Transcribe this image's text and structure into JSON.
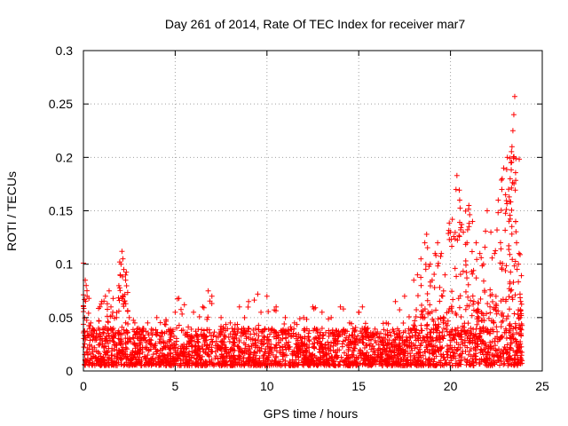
{
  "chart_data": {
    "type": "scatter",
    "title": "Day 261 of 2014, Rate Of TEC Index for receiver mar7",
    "xlabel": "GPS time / hours",
    "ylabel": "ROTI / TECUs",
    "xlim": [
      0,
      25
    ],
    "ylim": [
      0,
      0.3
    ],
    "xticks": [
      0,
      5,
      10,
      15,
      20,
      25
    ],
    "xtick_labels": [
      "0",
      "5",
      "10",
      "15",
      "20",
      "25"
    ],
    "yticks": [
      0,
      0.05,
      0.1,
      0.15,
      0.2,
      0.25,
      0.3
    ],
    "ytick_labels": [
      "0",
      "0.05",
      "0.1",
      "0.15",
      "0.2",
      "0.25",
      "0.3"
    ],
    "grid": true,
    "marker": "+",
    "color": "#ff0000",
    "series": [
      {
        "name": "ROTI",
        "points": [
          [
            0.0,
            0.101
          ],
          [
            0.1,
            0.085
          ],
          [
            0.15,
            0.08
          ],
          [
            0.2,
            0.07
          ],
          [
            0.3,
            0.068
          ],
          [
            0.4,
            0.045
          ],
          [
            0.5,
            0.04
          ],
          [
            0.7,
            0.035
          ],
          [
            0.9,
            0.06
          ],
          [
            1.0,
            0.065
          ],
          [
            1.2,
            0.07
          ],
          [
            1.4,
            0.075
          ],
          [
            1.5,
            0.06
          ],
          [
            1.6,
            0.055
          ],
          [
            1.8,
            0.05
          ],
          [
            2.0,
            0.09
          ],
          [
            2.05,
            0.1
          ],
          [
            2.1,
            0.112
          ],
          [
            2.15,
            0.105
          ],
          [
            2.2,
            0.095
          ],
          [
            2.3,
            0.085
          ],
          [
            2.5,
            0.05
          ],
          [
            2.8,
            0.045
          ],
          [
            3.0,
            0.04
          ],
          [
            3.5,
            0.045
          ],
          [
            4.0,
            0.05
          ],
          [
            4.5,
            0.048
          ],
          [
            5.0,
            0.055
          ],
          [
            5.2,
            0.068
          ],
          [
            5.5,
            0.062
          ],
          [
            6.0,
            0.055
          ],
          [
            6.5,
            0.06
          ],
          [
            6.8,
            0.075
          ],
          [
            7.0,
            0.07
          ],
          [
            7.5,
            0.05
          ],
          [
            8.0,
            0.045
          ],
          [
            8.5,
            0.06
          ],
          [
            9.0,
            0.065
          ],
          [
            9.5,
            0.072
          ],
          [
            10.0,
            0.07
          ],
          [
            10.5,
            0.06
          ],
          [
            11.0,
            0.05
          ],
          [
            11.5,
            0.045
          ],
          [
            12.0,
            0.05
          ],
          [
            12.5,
            0.06
          ],
          [
            13.0,
            0.055
          ],
          [
            13.5,
            0.05
          ],
          [
            14.0,
            0.06
          ],
          [
            14.5,
            0.045
          ],
          [
            15.0,
            0.055
          ],
          [
            15.2,
            0.06
          ],
          [
            15.5,
            0.04
          ],
          [
            16.0,
            0.035
          ],
          [
            16.5,
            0.045
          ],
          [
            17.0,
            0.065
          ],
          [
            17.5,
            0.07
          ],
          [
            18.0,
            0.085
          ],
          [
            18.2,
            0.09
          ],
          [
            18.4,
            0.08
          ],
          [
            18.6,
            0.12
          ],
          [
            18.7,
            0.128
          ],
          [
            18.9,
            0.1
          ],
          [
            19.0,
            0.085
          ],
          [
            19.3,
            0.12
          ],
          [
            19.5,
            0.11
          ],
          [
            19.7,
            0.09
          ],
          [
            20.0,
            0.13
          ],
          [
            20.1,
            0.142
          ],
          [
            20.3,
            0.17
          ],
          [
            20.35,
            0.183
          ],
          [
            20.5,
            0.16
          ],
          [
            20.7,
            0.13
          ],
          [
            20.9,
            0.12
          ],
          [
            21.0,
            0.155
          ],
          [
            21.2,
            0.14
          ],
          [
            21.4,
            0.12
          ],
          [
            21.6,
            0.11
          ],
          [
            21.8,
            0.1
          ],
          [
            22.0,
            0.15
          ],
          [
            22.2,
            0.13
          ],
          [
            22.4,
            0.11
          ],
          [
            22.6,
            0.16
          ],
          [
            22.8,
            0.17
          ],
          [
            22.9,
            0.19
          ],
          [
            23.0,
            0.165
          ],
          [
            23.1,
            0.2
          ],
          [
            23.2,
            0.163
          ],
          [
            23.25,
            0.18
          ],
          [
            23.3,
            0.195
          ],
          [
            23.35,
            0.21
          ],
          [
            23.4,
            0.225
          ],
          [
            23.45,
            0.24
          ],
          [
            23.5,
            0.257
          ],
          [
            23.55,
            0.14
          ],
          [
            23.6,
            0.12
          ],
          [
            23.7,
            0.1
          ],
          [
            23.8,
            0.05
          ]
        ]
      }
    ],
    "noise_band": {
      "min": 0.005,
      "max": 0.04,
      "density": "high"
    }
  }
}
